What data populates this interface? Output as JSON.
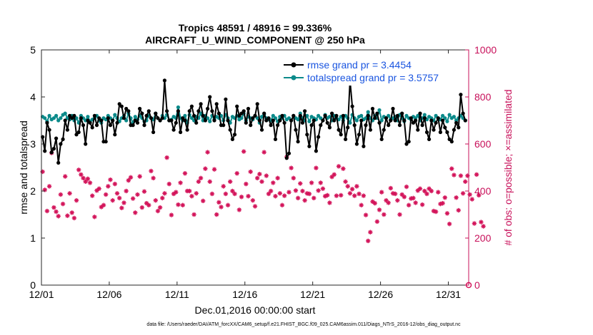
{
  "chart_data": {
    "type": "line",
    "title_line1": "Tropics 48591 / 48916 = 99.336%",
    "title_line2": "AIRCRAFT_U_WIND_COMPONENT @ 250 hPa",
    "xlabel": "Dec.01,2016 00:00:00 start",
    "ylabel_left": "rmse and totalspread",
    "ylabel_right": "# of obs: o=possible; ×=assimilated",
    "footnote": "data file: /Users/raeder/DAI/ATM_forcXX/CAM6_setup/f.e21.FHIST_BGC.f09_025.CAM6assim.011/Diags_NTrS_2016-12/obs_diag_output.nc",
    "xlim": [
      0,
      31.5
    ],
    "ylim_left": [
      0,
      5
    ],
    "ylim_right": [
      0,
      1000
    ],
    "x_ticks": [
      {
        "value": 0,
        "label": "12/01"
      },
      {
        "value": 5,
        "label": "12/06"
      },
      {
        "value": 10,
        "label": "12/11"
      },
      {
        "value": 15,
        "label": "12/16"
      },
      {
        "value": 20,
        "label": "12/21"
      },
      {
        "value": 25,
        "label": "12/26"
      },
      {
        "value": 30,
        "label": "12/31"
      }
    ],
    "y_ticks_left": [
      "0",
      "1",
      "2",
      "3",
      "4",
      "5"
    ],
    "y_ticks_right": [
      "0",
      "200",
      "400",
      "600",
      "800",
      "1000"
    ],
    "colors": {
      "rmse": "#000000",
      "spread": "#0b8a8a",
      "obs": "#d3145a",
      "legend_text": "#1a55e0",
      "right_axis": "#c8105a"
    },
    "series": [
      {
        "name": "rmse",
        "legend": "rmse grand pr = 3.4454",
        "values": [
          3.15,
          2.85,
          3.45,
          3.3,
          2.82,
          2.9,
          3.12,
          2.6,
          3.0,
          3.1,
          3.5,
          3.3,
          3.6,
          3.55,
          3.6,
          3.2,
          3.25,
          3.55,
          3.4,
          3.0,
          3.5,
          3.45,
          3.35,
          3.6,
          3.4,
          3.55,
          3.5,
          3.05,
          3.05,
          3.55,
          3.4,
          3.5,
          3.2,
          3.45,
          3.85,
          3.8,
          3.55,
          3.75,
          3.7,
          3.4,
          3.4,
          3.5,
          3.45,
          3.75,
          3.65,
          3.4,
          3.6,
          3.7,
          3.55,
          3.25,
          3.65,
          3.55,
          3.5,
          3.55,
          4.35,
          3.7,
          3.5,
          3.5,
          3.3,
          3.45,
          3.7,
          3.25,
          3.55,
          3.5,
          3.3,
          3.7,
          3.8,
          3.6,
          3.45,
          3.7,
          3.85,
          3.6,
          3.5,
          3.75,
          4.0,
          3.7,
          3.5,
          3.85,
          3.65,
          3.4,
          3.4,
          3.95,
          3.5,
          3.3,
          3.1,
          3.2,
          3.8,
          3.6,
          3.65,
          3.7,
          3.45,
          3.75,
          3.4,
          3.55,
          3.6,
          3.85,
          3.5,
          3.3,
          3.65,
          3.5,
          3.55,
          3.4,
          3.5,
          3.1,
          3.4,
          3.5,
          3.6,
          3.45,
          2.7,
          2.8,
          3.5,
          3.6,
          3.3,
          3.05,
          3.6,
          3.45,
          3.7,
          3.2,
          2.95,
          3.4,
          3.5,
          2.85,
          3.15,
          3.4,
          3.5,
          3.6,
          3.45,
          3.35,
          3.65,
          3.5,
          3.6,
          3.3,
          3.2,
          3.6,
          3.1,
          3.35,
          4.35,
          3.8,
          3.4,
          3.0,
          3.2,
          3.5,
          2.95,
          3.4,
          3.6,
          3.3,
          3.75,
          3.55,
          3.65,
          3.45,
          3.1,
          3.3,
          3.55,
          3.4,
          3.5,
          3.75,
          3.5,
          3.6,
          3.4,
          3.65,
          3.5,
          3.0,
          3.05,
          3.55,
          3.45,
          3.5,
          3.3,
          3.65,
          3.4,
          3.55,
          3.25,
          3.1,
          3.5,
          3.3,
          3.45,
          3.55,
          3.25,
          3.5,
          3.35,
          3.25,
          3.1,
          3.05,
          3.3,
          3.45,
          3.35,
          4.05,
          3.65,
          3.5
        ]
      },
      {
        "name": "totalspread",
        "legend": "totalspread grand pr = 3.5757",
        "values": [
          3.58,
          3.55,
          3.48,
          3.6,
          3.52,
          3.55,
          3.6,
          3.5,
          3.55,
          3.62,
          3.65,
          3.55,
          3.52,
          3.6,
          3.5,
          3.55,
          3.45,
          3.6,
          3.55,
          3.5,
          3.58,
          3.48,
          3.52,
          3.55,
          3.6,
          3.5,
          3.45,
          3.55,
          3.52,
          3.6,
          3.55,
          3.5,
          3.62,
          3.55,
          3.48,
          3.55,
          3.6,
          3.5,
          3.65,
          3.55,
          3.45,
          3.58,
          3.52,
          3.6,
          3.55,
          3.48,
          3.5,
          3.6,
          3.55,
          3.52,
          3.65,
          3.55,
          3.5,
          3.6,
          3.55,
          3.62,
          3.5,
          3.52,
          3.58,
          3.55,
          3.78,
          3.55,
          3.5,
          3.6,
          3.45,
          3.62,
          3.55,
          3.5,
          3.58,
          3.55,
          3.65,
          3.5,
          3.6,
          3.55,
          3.48,
          3.6,
          3.52,
          3.58,
          3.55,
          3.6,
          3.5,
          3.62,
          3.55,
          3.45,
          3.58,
          3.55,
          3.6,
          3.52,
          3.55,
          3.65,
          3.5,
          3.58,
          3.55,
          3.52,
          3.6,
          3.55,
          3.45,
          3.58,
          3.62,
          3.55,
          3.52,
          3.5,
          3.6,
          3.55,
          3.48,
          3.58,
          3.55,
          3.6,
          3.52,
          3.55,
          3.5,
          3.6,
          3.55,
          3.52,
          3.65,
          3.55,
          3.5,
          3.6,
          3.48,
          3.58,
          3.55,
          3.52,
          3.6,
          3.55,
          3.5,
          3.62,
          3.55,
          3.58,
          3.5,
          3.6,
          3.55,
          3.52,
          3.58,
          3.5,
          3.6,
          3.55,
          3.45,
          3.62,
          3.55,
          3.5,
          3.58,
          3.6,
          3.52,
          3.55,
          3.68,
          3.55,
          3.5,
          3.6,
          3.55,
          3.72,
          3.5,
          3.58,
          3.55,
          3.6,
          3.52,
          3.55,
          3.58,
          3.5,
          3.62,
          3.55,
          3.48,
          3.6,
          3.55,
          3.52,
          3.58,
          3.55,
          3.6,
          3.5,
          3.55,
          3.62,
          3.52,
          3.58,
          3.55,
          3.5,
          3.6,
          3.55,
          3.52,
          3.6,
          3.55,
          3.48,
          3.62,
          3.55,
          3.58,
          3.5,
          3.55,
          3.6,
          3.55,
          3.5
        ]
      },
      {
        "name": "obs_assimilated",
        "values": [
          482,
          405,
          315,
          420,
          562,
          330,
          312,
          293,
          385,
          345,
          462,
          295,
          390,
          308,
          285,
          360,
          490,
          470,
          455,
          440,
          452,
          435,
          380,
          290,
          402,
          410,
          332,
          340,
          385,
          420,
          448,
          360,
          430,
          390,
          370,
          328,
          350,
          400,
          445,
          458,
          368,
          308,
          385,
          462,
          330,
          398,
          348,
          340,
          485,
          455,
          360,
          315,
          330,
          370,
          390,
          542,
          430,
          298,
          388,
          395,
          342,
          435,
          340,
          475,
          400,
          400,
          378,
          300,
          390,
          440,
          455,
          358,
          495,
          565,
          440,
          388,
          492,
          300,
          352,
          332,
          420,
          388,
          340,
          440,
          400,
          388,
          475,
          320,
          375,
          568,
          430,
          378,
          482,
          360,
          335,
          455,
          472,
          440,
          565,
          465,
          388,
          400,
          435,
          378,
          455,
          390,
          340,
          380,
          545,
          395,
          498,
          455,
          402,
          370,
          432,
          400,
          360,
          390,
          388,
          435,
          370,
          498,
          402,
          435,
          410,
          378,
          382,
          350,
          460,
          470,
          380,
          505,
          382,
          495,
          440,
          420,
          390,
          408,
          380,
          420,
          388,
          340,
          380,
          298,
          188,
          225,
          355,
          348,
          270,
          320,
          395,
          300,
          360,
          350,
          412,
          390,
          388,
          360,
          300,
          385,
          375,
          418,
          340,
          368,
          370,
          350,
          402,
          410,
          342,
          400,
          388,
          410,
          400,
          315,
          312,
          395,
          345,
          348,
          372,
          305,
          260,
          495,
          468,
          372,
          318,
          465,
          390,
          440,
          465,
          385,
          365,
          262,
          470,
          382,
          268,
          250
        ]
      }
    ]
  }
}
